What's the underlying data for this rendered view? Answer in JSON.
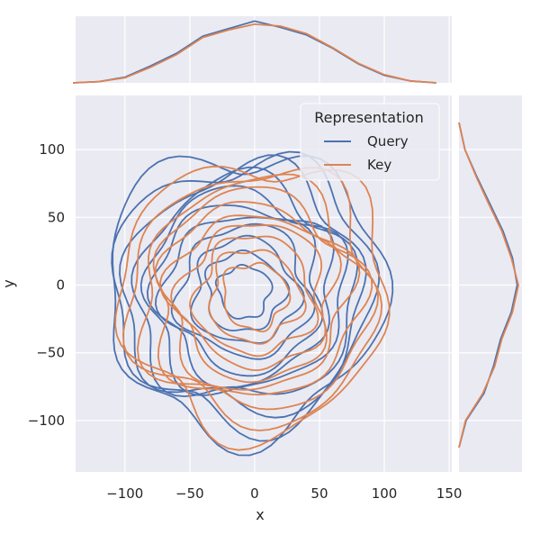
{
  "chart_data": {
    "type": "contour",
    "subtype": "joint-kde",
    "xlabel": "x",
    "ylabel": "y",
    "xlim": [
      -138,
      152
    ],
    "ylim": [
      -138,
      140
    ],
    "x_ticks": [
      -100,
      -50,
      0,
      50,
      100,
      150
    ],
    "y_ticks": [
      -100,
      -50,
      0,
      50,
      100
    ],
    "x_tick_labels": [
      "−100",
      "−50",
      "0",
      "50",
      "100",
      "150"
    ],
    "y_tick_labels": [
      "−100",
      "−50",
      "0",
      "50",
      "100"
    ],
    "grid": true,
    "legend": {
      "title": "Representation",
      "placement": "top-right",
      "entries": [
        "Query",
        "Key"
      ]
    },
    "series": [
      {
        "name": "Query",
        "color": "#4c72b0",
        "center": [
          -8,
          -5
        ],
        "contour_radii": [
          20,
          30,
          40,
          50,
          60,
          68,
          76,
          84,
          92,
          100,
          107
        ],
        "marginal_x_density": {
          "x": [
            -140,
            -120,
            -100,
            -80,
            -60,
            -40,
            -20,
            0,
            20,
            40,
            60,
            80,
            100,
            120,
            140
          ],
          "y": [
            0.0,
            0.02,
            0.09,
            0.27,
            0.47,
            0.74,
            0.86,
            0.98,
            0.88,
            0.76,
            0.55,
            0.3,
            0.12,
            0.03,
            0.0
          ]
        },
        "marginal_y_density": {
          "y": [
            -120,
            -100,
            -80,
            -60,
            -40,
            -20,
            0,
            20,
            40,
            60,
            80,
            100,
            120
          ],
          "d": [
            0.0,
            0.12,
            0.42,
            0.58,
            0.7,
            0.88,
            0.98,
            0.9,
            0.74,
            0.52,
            0.3,
            0.1,
            0.0
          ]
        }
      },
      {
        "name": "Key",
        "color": "#dd8452",
        "center": [
          0,
          -8
        ],
        "contour_radii": [
          25,
          35,
          45,
          55,
          63,
          71,
          79,
          87,
          95,
          103
        ],
        "marginal_x_density": {
          "x": [
            -140,
            -120,
            -100,
            -80,
            -60,
            -40,
            -20,
            0,
            20,
            40,
            60,
            80,
            100,
            120,
            140
          ],
          "y": [
            0.0,
            0.02,
            0.08,
            0.25,
            0.45,
            0.72,
            0.84,
            0.93,
            0.9,
            0.78,
            0.56,
            0.31,
            0.13,
            0.03,
            0.0
          ]
        },
        "marginal_y_density": {
          "y": [
            -120,
            -100,
            -80,
            -60,
            -40,
            -20,
            0,
            20,
            40,
            60,
            80,
            100,
            120
          ],
          "d": [
            0.0,
            0.11,
            0.4,
            0.6,
            0.72,
            0.9,
            1.0,
            0.88,
            0.72,
            0.5,
            0.29,
            0.1,
            0.0
          ]
        }
      }
    ]
  }
}
